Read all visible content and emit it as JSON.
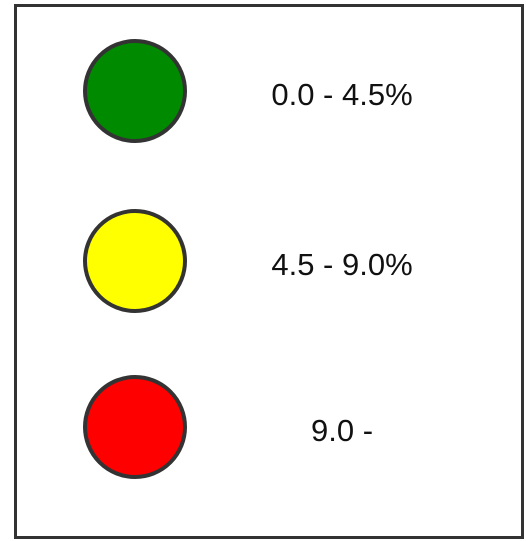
{
  "legend": {
    "items": [
      {
        "label": "0.0 - 4.5%",
        "color": "#008a00"
      },
      {
        "label": "4.5 - 9.0%",
        "color": "#ffff00"
      },
      {
        "label": "9.0 -",
        "color": "#ff0000"
      }
    ]
  }
}
